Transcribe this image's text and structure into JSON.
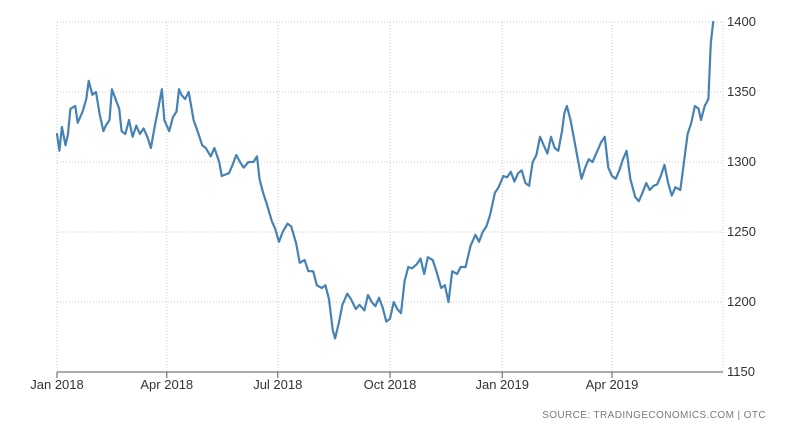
{
  "source_text": "SOURCE: TRADINGECONOMICS.COM | OTC",
  "colors": {
    "line": "#4682b4",
    "grid": "#c8c8c8",
    "axis": "#5a5a5a",
    "text": "#333333"
  },
  "chart_data": {
    "type": "line",
    "title": "",
    "xlabel": "",
    "ylabel": "",
    "ylim": [
      1150,
      1400
    ],
    "yticks": [
      1150,
      1200,
      1250,
      1300,
      1350,
      1400
    ],
    "y_axis_side": "right",
    "xlim": [
      "2018-01-01",
      "2019-07-01"
    ],
    "xticks": [
      {
        "date": "2018-01-01",
        "label": "Jan 2018"
      },
      {
        "date": "2018-04-01",
        "label": "Apr 2018"
      },
      {
        "date": "2018-07-01",
        "label": "Jul 2018"
      },
      {
        "date": "2018-10-01",
        "label": "Oct 2018"
      },
      {
        "date": "2019-01-01",
        "label": "Jan 2019"
      },
      {
        "date": "2019-04-01",
        "label": "Apr 2019"
      }
    ],
    "grid": true,
    "series": [
      {
        "points": [
          [
            "2018-01-01",
            1320
          ],
          [
            "2018-01-03",
            1308
          ],
          [
            "2018-01-05",
            1325
          ],
          [
            "2018-01-08",
            1312
          ],
          [
            "2018-01-10",
            1320
          ],
          [
            "2018-01-12",
            1338
          ],
          [
            "2018-01-16",
            1340
          ],
          [
            "2018-01-18",
            1328
          ],
          [
            "2018-01-22",
            1336
          ],
          [
            "2018-01-25",
            1345
          ],
          [
            "2018-01-27",
            1358
          ],
          [
            "2018-01-30",
            1348
          ],
          [
            "2018-02-02",
            1350
          ],
          [
            "2018-02-05",
            1334
          ],
          [
            "2018-02-08",
            1322
          ],
          [
            "2018-02-10",
            1326
          ],
          [
            "2018-02-13",
            1330
          ],
          [
            "2018-02-15",
            1352
          ],
          [
            "2018-02-18",
            1345
          ],
          [
            "2018-02-21",
            1338
          ],
          [
            "2018-02-23",
            1322
          ],
          [
            "2018-02-26",
            1320
          ],
          [
            "2018-03-01",
            1330
          ],
          [
            "2018-03-04",
            1318
          ],
          [
            "2018-03-07",
            1326
          ],
          [
            "2018-03-10",
            1320
          ],
          [
            "2018-03-13",
            1324
          ],
          [
            "2018-03-16",
            1318
          ],
          [
            "2018-03-19",
            1310
          ],
          [
            "2018-03-22",
            1325
          ],
          [
            "2018-03-25",
            1338
          ],
          [
            "2018-03-28",
            1352
          ],
          [
            "2018-03-30",
            1330
          ],
          [
            "2018-04-03",
            1322
          ],
          [
            "2018-04-06",
            1332
          ],
          [
            "2018-04-09",
            1336
          ],
          [
            "2018-04-11",
            1352
          ],
          [
            "2018-04-13",
            1348
          ],
          [
            "2018-04-16",
            1345
          ],
          [
            "2018-04-19",
            1350
          ],
          [
            "2018-04-23",
            1330
          ],
          [
            "2018-04-27",
            1320
          ],
          [
            "2018-04-30",
            1312
          ],
          [
            "2018-05-03",
            1310
          ],
          [
            "2018-05-07",
            1304
          ],
          [
            "2018-05-10",
            1310
          ],
          [
            "2018-05-14",
            1300
          ],
          [
            "2018-05-16",
            1290
          ],
          [
            "2018-05-19",
            1291
          ],
          [
            "2018-05-22",
            1292
          ],
          [
            "2018-05-25",
            1298
          ],
          [
            "2018-05-28",
            1305
          ],
          [
            "2018-05-31",
            1300
          ],
          [
            "2018-06-03",
            1296
          ],
          [
            "2018-06-07",
            1300
          ],
          [
            "2018-06-11",
            1300
          ],
          [
            "2018-06-14",
            1304
          ],
          [
            "2018-06-16",
            1288
          ],
          [
            "2018-06-19",
            1278
          ],
          [
            "2018-06-22",
            1270
          ],
          [
            "2018-06-26",
            1258
          ],
          [
            "2018-06-29",
            1252
          ],
          [
            "2018-07-02",
            1243
          ],
          [
            "2018-07-05",
            1250
          ],
          [
            "2018-07-09",
            1256
          ],
          [
            "2018-07-12",
            1254
          ],
          [
            "2018-07-16",
            1242
          ],
          [
            "2018-07-19",
            1228
          ],
          [
            "2018-07-23",
            1230
          ],
          [
            "2018-07-26",
            1222
          ],
          [
            "2018-07-30",
            1222
          ],
          [
            "2018-08-02",
            1212
          ],
          [
            "2018-08-06",
            1210
          ],
          [
            "2018-08-09",
            1212
          ],
          [
            "2018-08-12",
            1202
          ],
          [
            "2018-08-15",
            1180
          ],
          [
            "2018-08-17",
            1174
          ],
          [
            "2018-08-20",
            1185
          ],
          [
            "2018-08-23",
            1198
          ],
          [
            "2018-08-27",
            1206
          ],
          [
            "2018-08-30",
            1202
          ],
          [
            "2018-09-03",
            1195
          ],
          [
            "2018-09-06",
            1198
          ],
          [
            "2018-09-10",
            1194
          ],
          [
            "2018-09-13",
            1205
          ],
          [
            "2018-09-16",
            1200
          ],
          [
            "2018-09-19",
            1197
          ],
          [
            "2018-09-22",
            1203
          ],
          [
            "2018-09-25",
            1196
          ],
          [
            "2018-09-28",
            1186
          ],
          [
            "2018-10-01",
            1188
          ],
          [
            "2018-10-04",
            1200
          ],
          [
            "2018-10-07",
            1195
          ],
          [
            "2018-10-10",
            1192
          ],
          [
            "2018-10-13",
            1215
          ],
          [
            "2018-10-16",
            1225
          ],
          [
            "2018-10-19",
            1224
          ],
          [
            "2018-10-23",
            1227
          ],
          [
            "2018-10-26",
            1231
          ],
          [
            "2018-10-29",
            1220
          ],
          [
            "2018-11-01",
            1232
          ],
          [
            "2018-11-05",
            1230
          ],
          [
            "2018-11-08",
            1222
          ],
          [
            "2018-11-12",
            1210
          ],
          [
            "2018-11-15",
            1212
          ],
          [
            "2018-11-18",
            1200
          ],
          [
            "2018-11-21",
            1222
          ],
          [
            "2018-11-25",
            1220
          ],
          [
            "2018-11-28",
            1225
          ],
          [
            "2018-12-02",
            1225
          ],
          [
            "2018-12-06",
            1240
          ],
          [
            "2018-12-10",
            1248
          ],
          [
            "2018-12-13",
            1243
          ],
          [
            "2018-12-16",
            1250
          ],
          [
            "2018-12-19",
            1254
          ],
          [
            "2018-12-22",
            1262
          ],
          [
            "2018-12-26",
            1278
          ],
          [
            "2018-12-29",
            1282
          ],
          [
            "2019-01-02",
            1290
          ],
          [
            "2019-01-05",
            1289
          ],
          [
            "2019-01-08",
            1293
          ],
          [
            "2019-01-11",
            1286
          ],
          [
            "2019-01-14",
            1292
          ],
          [
            "2019-01-17",
            1294
          ],
          [
            "2019-01-20",
            1285
          ],
          [
            "2019-01-23",
            1283
          ],
          [
            "2019-01-26",
            1300
          ],
          [
            "2019-01-29",
            1305
          ],
          [
            "2019-02-01",
            1318
          ],
          [
            "2019-02-04",
            1312
          ],
          [
            "2019-02-07",
            1306
          ],
          [
            "2019-02-10",
            1318
          ],
          [
            "2019-02-13",
            1310
          ],
          [
            "2019-02-16",
            1308
          ],
          [
            "2019-02-19",
            1322
          ],
          [
            "2019-02-21",
            1335
          ],
          [
            "2019-02-23",
            1340
          ],
          [
            "2019-02-26",
            1330
          ],
          [
            "2019-03-01",
            1316
          ],
          [
            "2019-03-04",
            1302
          ],
          [
            "2019-03-07",
            1288
          ],
          [
            "2019-03-10",
            1296
          ],
          [
            "2019-03-13",
            1302
          ],
          [
            "2019-03-16",
            1300
          ],
          [
            "2019-03-20",
            1308
          ],
          [
            "2019-03-23",
            1314
          ],
          [
            "2019-03-26",
            1318
          ],
          [
            "2019-03-29",
            1296
          ],
          [
            "2019-04-01",
            1290
          ],
          [
            "2019-04-04",
            1288
          ],
          [
            "2019-04-07",
            1294
          ],
          [
            "2019-04-10",
            1302
          ],
          [
            "2019-04-13",
            1308
          ],
          [
            "2019-04-16",
            1288
          ],
          [
            "2019-04-20",
            1275
          ],
          [
            "2019-04-23",
            1272
          ],
          [
            "2019-04-26",
            1278
          ],
          [
            "2019-04-29",
            1285
          ],
          [
            "2019-05-02",
            1280
          ],
          [
            "2019-05-05",
            1283
          ],
          [
            "2019-05-08",
            1284
          ],
          [
            "2019-05-11",
            1290
          ],
          [
            "2019-05-14",
            1298
          ],
          [
            "2019-05-17",
            1285
          ],
          [
            "2019-05-20",
            1276
          ],
          [
            "2019-05-23",
            1282
          ],
          [
            "2019-05-27",
            1280
          ],
          [
            "2019-05-30",
            1300
          ],
          [
            "2019-06-02",
            1320
          ],
          [
            "2019-06-05",
            1328
          ],
          [
            "2019-06-08",
            1340
          ],
          [
            "2019-06-11",
            1338
          ],
          [
            "2019-06-13",
            1330
          ],
          [
            "2019-06-16",
            1340
          ],
          [
            "2019-06-19",
            1345
          ],
          [
            "2019-06-21",
            1385
          ],
          [
            "2019-06-23",
            1400
          ]
        ]
      }
    ]
  }
}
